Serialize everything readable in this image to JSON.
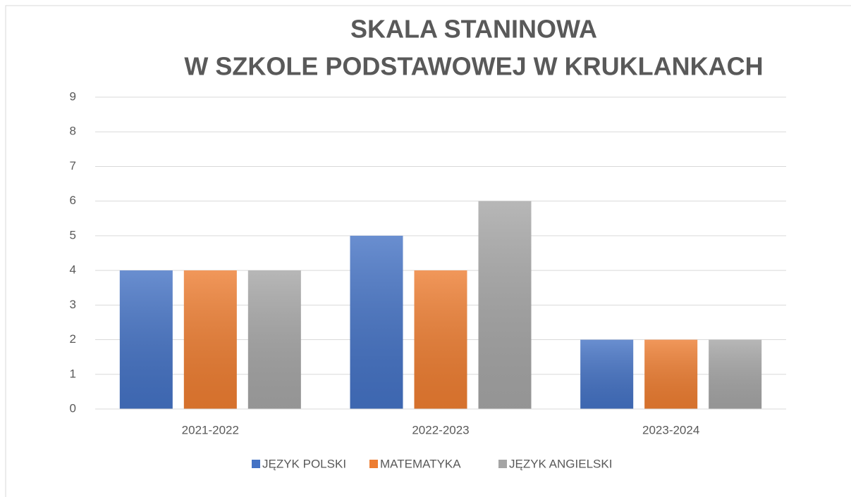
{
  "chart_data": {
    "type": "bar",
    "title": [
      "SKALA STANINOWA",
      "W SZKOLE PODSTAWOWEJ W KRUKLANKACH"
    ],
    "categories": [
      "2021-2022",
      "2022-2023",
      "2023-2024"
    ],
    "series": [
      {
        "name": "JĘZYK POLSKI",
        "color": "#4472c4",
        "values": [
          4,
          5,
          2
        ]
      },
      {
        "name": "MATEMATYKA",
        "color": "#ed7d31",
        "values": [
          4,
          4,
          2
        ]
      },
      {
        "name": "JĘZYK ANGIELSKI",
        "color": "#a5a5a5",
        "values": [
          4,
          6,
          2
        ]
      }
    ],
    "ylim": [
      0,
      9
    ],
    "yticks": [
      0,
      1,
      2,
      3,
      4,
      5,
      6,
      7,
      8,
      9
    ],
    "grid": true,
    "legend": "bottom"
  }
}
